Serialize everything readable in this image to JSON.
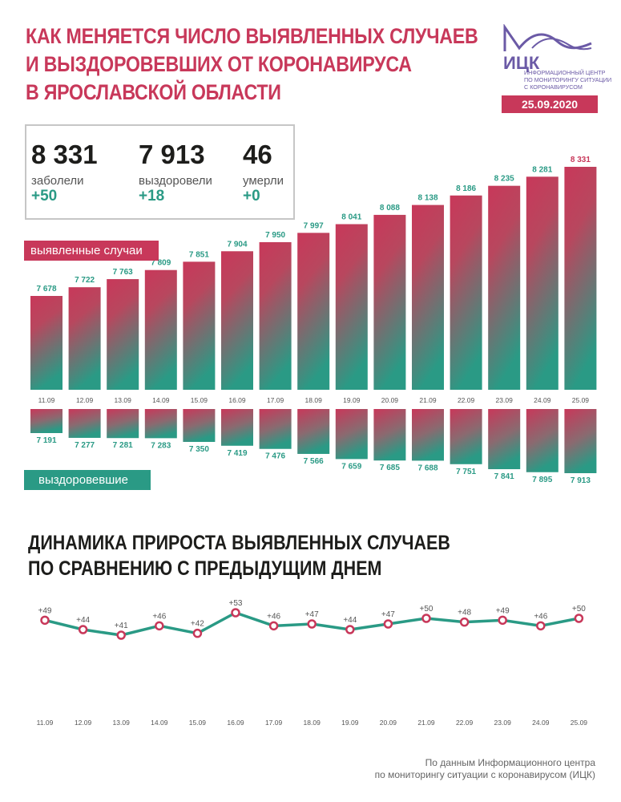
{
  "header": {
    "title_lines": [
      "КАК МЕНЯЕТСЯ ЧИСЛО ВЫЯВЛЕННЫХ СЛУЧАЕВ",
      "И ВЫЗДОРОВЕВШИХ ОТ КОРОНАВИРУСА",
      "В ЯРОСЛАВСКОЙ ОБЛАСТИ"
    ],
    "logo_name": "ИЦК",
    "logo_lines": [
      "ИНФОРМАЦИОННЫЙ ЦЕНТР",
      "ПО МОНИТОРИНГУ СИТУАЦИИ",
      "С КОРОНАВИРУСОМ"
    ],
    "date": "25.09.2020"
  },
  "summary": {
    "cases": {
      "value": "8 331",
      "label": "заболели",
      "delta": "+50"
    },
    "recovered": {
      "value": "7 913",
      "label": "выздоровели",
      "delta": "+18"
    },
    "deaths": {
      "value": "46",
      "label": "умерли",
      "delta": "+0"
    }
  },
  "legend": {
    "cases_tag": "выявленные случаи",
    "recovered_tag": "выздоровевшие"
  },
  "dynamics": {
    "title_lines": [
      "ДИНАМИКА ПРИРОСТА ВЫЯВЛЕННЫХ СЛУЧАЕВ",
      "ПО СРАВНЕНИЮ С ПРЕДЫДУЩИМ ДНЕМ"
    ]
  },
  "footer": {
    "lines": [
      "По данным Информационного центра",
      "по мониторингу ситуации с коронавирусом (ИЦК)"
    ]
  },
  "colors": {
    "pink": "#c8385a",
    "teal": "#2a9a85",
    "logo": "#6b5aa6"
  },
  "chart_data": [
    {
      "type": "bar",
      "categories": [
        "11.09",
        "12.09",
        "13.09",
        "14.09",
        "15.09",
        "16.09",
        "17.09",
        "18.09",
        "19.09",
        "20.09",
        "21.09",
        "22.09",
        "23.09",
        "24.09",
        "25.09"
      ],
      "series": [
        {
          "name": "выявленные случаи",
          "values": [
            7678,
            7722,
            7763,
            7809,
            7851,
            7904,
            7950,
            7997,
            8041,
            8088,
            8138,
            8186,
            8235,
            8281,
            8331
          ],
          "labels": [
            "7 678",
            "7 722",
            "7 763",
            "7 809",
            "7 851",
            "7 904",
            "7 950",
            "7 997",
            "8 041",
            "8 088",
            "8 138",
            "8 186",
            "8 235",
            "8 281",
            "8 331"
          ]
        },
        {
          "name": "выздоровевшие",
          "values": [
            7191,
            7277,
            7281,
            7283,
            7350,
            7419,
            7476,
            7566,
            7659,
            7685,
            7688,
            7751,
            7841,
            7895,
            7913
          ],
          "labels": [
            "7 191",
            "7 277",
            "7 281",
            "7 283",
            "7 350",
            "7 419",
            "7 476",
            "7 566",
            "7 659",
            "7 685",
            "7 688",
            "7 751",
            "7 841",
            "7 895",
            "7 913"
          ]
        }
      ]
    },
    {
      "type": "line",
      "categories": [
        "11.09",
        "12.09",
        "13.09",
        "14.09",
        "15.09",
        "16.09",
        "17.09",
        "18.09",
        "19.09",
        "20.09",
        "21.09",
        "22.09",
        "23.09",
        "24.09",
        "25.09"
      ],
      "values": [
        49,
        44,
        41,
        46,
        42,
        53,
        46,
        47,
        44,
        47,
        50,
        48,
        49,
        46,
        50
      ],
      "labels": [
        "+49",
        "+44",
        "+41",
        "+46",
        "+42",
        "+53",
        "+46",
        "+47",
        "+44",
        "+47",
        "+50",
        "+48",
        "+49",
        "+46",
        "+50"
      ]
    }
  ]
}
